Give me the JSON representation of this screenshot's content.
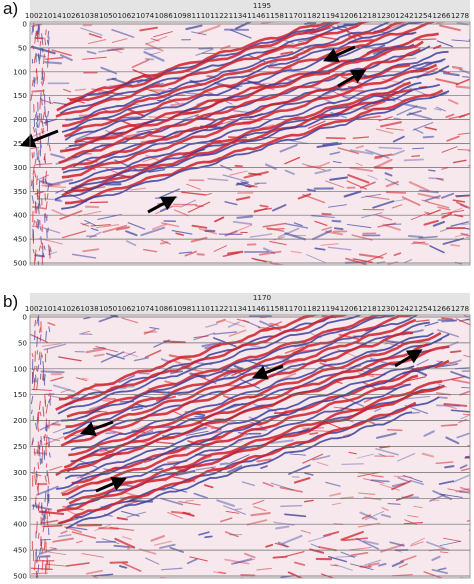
{
  "panels": [
    {
      "letter": "a)",
      "trace_label": "1195",
      "x_ticks": [
        "1002",
        "1014",
        "1026",
        "1038",
        "1050",
        "1062",
        "1074",
        "1086",
        "1098",
        "1110",
        "1122",
        "1134",
        "1146",
        "1158",
        "1170",
        "1182",
        "1194",
        "1206",
        "1218",
        "1230",
        "1242",
        "1254",
        "1266",
        "1278"
      ],
      "y_ticks": [
        "0",
        "50",
        "100",
        "150",
        "200",
        "250",
        "300",
        "350",
        "400",
        "450",
        "500"
      ],
      "arrows": [
        {
          "id": "arrow-1",
          "direction": "points-left-down"
        },
        {
          "id": "arrow-2",
          "direction": "points-left-down"
        },
        {
          "id": "arrow-3",
          "direction": "points-right-up"
        },
        {
          "id": "arrow-4",
          "direction": "points-right-up"
        }
      ]
    },
    {
      "letter": "b)",
      "trace_label": "1170",
      "x_ticks": [
        "1002",
        "1014",
        "1026",
        "1038",
        "1050",
        "1062",
        "1074",
        "1086",
        "1098",
        "1110",
        "1122",
        "1134",
        "1146",
        "1158",
        "1170",
        "1182",
        "1194",
        "1206",
        "1218",
        "1230",
        "1242",
        "1254",
        "1266",
        "1278"
      ],
      "y_ticks": [
        "0",
        "50",
        "100",
        "150",
        "200",
        "250",
        "300",
        "350",
        "400",
        "450",
        "500"
      ],
      "arrows": [
        {
          "id": "arrow-1",
          "direction": "points-left-down"
        },
        {
          "id": "arrow-2",
          "direction": "points-left-down"
        },
        {
          "id": "arrow-3",
          "direction": "points-right-up"
        },
        {
          "id": "arrow-4",
          "direction": "points-right-up"
        }
      ]
    }
  ],
  "colors": {
    "positive": "#d0202a",
    "negative": "#3a3f9e",
    "background": "#f6e8ec",
    "gridline": "#6a6a6a",
    "header": "#e4e4e4"
  }
}
